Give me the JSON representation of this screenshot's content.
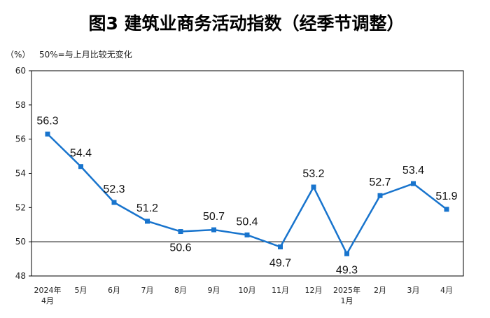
{
  "header": {
    "title": "图3  建筑业商务活动指数（经季节调整）",
    "unit": "（%）",
    "note": "50%=与上月比较无变化"
  },
  "colors": {
    "line": "#1874CD",
    "marker": "#1874CD",
    "axis": "#000000",
    "background": "#ffffff"
  },
  "chart_data": {
    "type": "line",
    "title": "图3  建筑业商务活动指数（经季节调整）",
    "xlabel": "",
    "ylabel": "（%）",
    "ylim": [
      48,
      60
    ],
    "yticks": [
      48,
      50,
      52,
      54,
      56,
      58,
      60
    ],
    "reference_line": 50,
    "grid": false,
    "categories": [
      [
        "2024年",
        "4月"
      ],
      [
        "5月"
      ],
      [
        "6月"
      ],
      [
        "7月"
      ],
      [
        "8月"
      ],
      [
        "9月"
      ],
      [
        "10月"
      ],
      [
        "11月"
      ],
      [
        "12月"
      ],
      [
        "2025年",
        "1月"
      ],
      [
        "2月"
      ],
      [
        "3月"
      ],
      [
        "4月"
      ]
    ],
    "series": [
      {
        "values": [
          56.3,
          54.4,
          52.3,
          51.2,
          50.6,
          50.7,
          50.4,
          49.7,
          53.2,
          49.3,
          52.7,
          53.4,
          51.9
        ],
        "labels": [
          "56.3",
          "54.4",
          "52.3",
          "51.2",
          "50.6",
          "50.7",
          "50.4",
          "49.7",
          "53.2",
          "49.3",
          "52.7",
          "53.4",
          "51.9"
        ]
      }
    ]
  }
}
